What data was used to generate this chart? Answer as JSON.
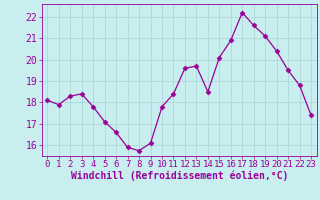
{
  "x": [
    0,
    1,
    2,
    3,
    4,
    5,
    6,
    7,
    8,
    9,
    10,
    11,
    12,
    13,
    14,
    15,
    16,
    17,
    18,
    19,
    20,
    21,
    22,
    23
  ],
  "y": [
    18.1,
    17.9,
    18.3,
    18.4,
    17.8,
    17.1,
    16.6,
    15.9,
    15.75,
    16.1,
    17.8,
    18.4,
    19.6,
    19.7,
    18.5,
    20.1,
    20.9,
    22.2,
    21.6,
    21.1,
    20.4,
    19.5,
    18.8,
    17.4
  ],
  "line_color": "#990099",
  "marker": "D",
  "markersize": 2.5,
  "linewidth": 0.9,
  "bg_color": "#c8eef0",
  "grid_color": "#aed8d8",
  "xlabel": "Windchill (Refroidissement éolien,°C)",
  "xlabel_color": "#990099",
  "tick_color": "#990099",
  "ylabel_ticks": [
    16,
    17,
    18,
    19,
    20,
    21,
    22
  ],
  "xlim": [
    -0.5,
    23.5
  ],
  "ylim": [
    15.5,
    22.6
  ],
  "xtick_labels": [
    "0",
    "1",
    "2",
    "3",
    "4",
    "5",
    "6",
    "7",
    "8",
    "9",
    "10",
    "11",
    "12",
    "13",
    "14",
    "15",
    "16",
    "17",
    "18",
    "19",
    "20",
    "21",
    "22",
    "23"
  ],
  "tick_fontsize": 6.5,
  "xlabel_fontsize": 7,
  "ytick_fontsize": 7
}
